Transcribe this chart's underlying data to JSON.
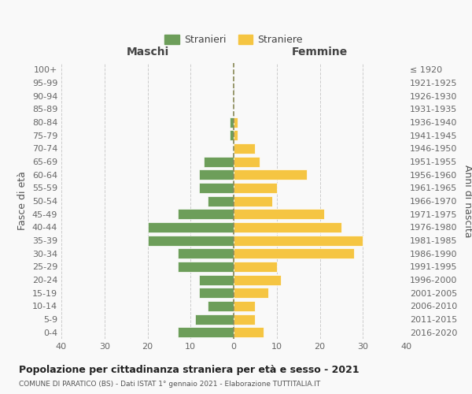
{
  "age_groups": [
    "0-4",
    "5-9",
    "10-14",
    "15-19",
    "20-24",
    "25-29",
    "30-34",
    "35-39",
    "40-44",
    "45-49",
    "50-54",
    "55-59",
    "60-64",
    "65-69",
    "70-74",
    "75-79",
    "80-84",
    "85-89",
    "90-94",
    "95-99",
    "100+"
  ],
  "birth_years": [
    "2016-2020",
    "2011-2015",
    "2006-2010",
    "2001-2005",
    "1996-2000",
    "1991-1995",
    "1986-1990",
    "1981-1985",
    "1976-1980",
    "1971-1975",
    "1966-1970",
    "1961-1965",
    "1956-1960",
    "1951-1955",
    "1946-1950",
    "1941-1945",
    "1936-1940",
    "1931-1935",
    "1926-1930",
    "1921-1925",
    "≤ 1920"
  ],
  "males": [
    13,
    9,
    6,
    8,
    8,
    13,
    13,
    20,
    20,
    13,
    6,
    8,
    8,
    7,
    0,
    1,
    1,
    0,
    0,
    0,
    0
  ],
  "females": [
    7,
    5,
    5,
    8,
    11,
    10,
    28,
    30,
    25,
    21,
    9,
    10,
    17,
    6,
    5,
    1,
    1,
    0,
    0,
    0,
    0
  ],
  "male_color": "#6d9e5a",
  "female_color": "#f5c542",
  "background_color": "#f9f9f9",
  "grid_color": "#cccccc",
  "title": "Popolazione per cittadinanza straniera per età e sesso - 2021",
  "subtitle": "COMUNE DI PARATICO (BS) - Dati ISTAT 1° gennaio 2021 - Elaborazione TUTTITALIA.IT",
  "ylabel_left": "Fasce di età",
  "ylabel_right": "Anni di nascita",
  "xlabel_left": "Maschi",
  "xlabel_right": "Femmine",
  "legend_male": "Stranieri",
  "legend_female": "Straniere",
  "xlim": 40
}
